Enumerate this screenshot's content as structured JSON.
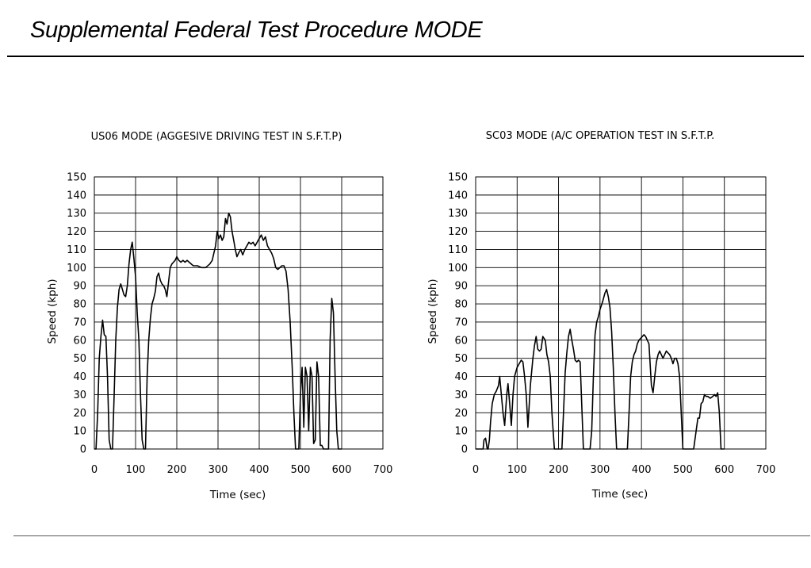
{
  "slide": {
    "title": "Supplemental Federal Test Procedure MODE"
  },
  "chart_data": [
    {
      "type": "line",
      "title": "US06 MODE (AGGESIVE DRIVING TEST IN S.F.T.P)",
      "xlabel": "Time (sec)",
      "ylabel": "Speed (kph)",
      "xlim": [
        0,
        700
      ],
      "ylim": [
        0,
        150
      ],
      "xticks": [
        0,
        100,
        200,
        300,
        400,
        500,
        600,
        700
      ],
      "yticks": [
        0,
        10,
        20,
        30,
        40,
        50,
        60,
        70,
        80,
        90,
        100,
        110,
        120,
        130,
        140,
        150
      ],
      "grid": true,
      "series": [
        {
          "x": [
            0,
            4,
            8,
            12,
            16,
            20,
            24,
            28,
            32,
            36,
            40,
            44,
            48,
            52,
            56,
            60,
            64,
            68,
            72,
            76,
            80,
            84,
            88,
            92,
            96,
            100,
            104,
            108,
            112,
            116,
            120,
            124,
            128,
            132,
            136,
            140,
            144,
            148,
            152,
            156,
            160,
            164,
            168,
            172,
            176,
            180,
            184,
            188,
            192,
            196,
            200,
            205,
            210,
            215,
            220,
            225,
            230,
            240,
            250,
            260,
            270,
            280,
            286,
            290,
            294,
            298,
            302,
            306,
            310,
            314,
            318,
            322,
            326,
            330,
            334,
            338,
            342,
            346,
            350,
            355,
            360,
            365,
            370,
            375,
            380,
            385,
            390,
            395,
            400,
            405,
            410,
            415,
            420,
            425,
            430,
            435,
            440,
            445,
            450,
            455,
            460,
            465,
            470,
            475,
            480,
            484,
            488,
            492,
            494,
            496,
            500,
            504,
            508,
            512,
            516,
            520,
            524,
            528,
            532,
            536,
            540,
            544,
            548,
            552,
            556,
            560,
            564,
            568,
            572,
            576,
            580,
            584,
            588,
            592,
            596,
            600
          ],
          "y": [
            0,
            0,
            20,
            50,
            62,
            71,
            63,
            62,
            40,
            5,
            0,
            0,
            30,
            60,
            78,
            88,
            91,
            88,
            85,
            84,
            90,
            102,
            110,
            114,
            105,
            95,
            75,
            60,
            30,
            5,
            0,
            0,
            40,
            60,
            72,
            80,
            83,
            87,
            95,
            97,
            93,
            91,
            90,
            88,
            84,
            92,
            100,
            102,
            103,
            104,
            106,
            104,
            103,
            104,
            103,
            104,
            103,
            101,
            101,
            100,
            100,
            102,
            104,
            108,
            112,
            120,
            116,
            118,
            115,
            117,
            127,
            124,
            130,
            128,
            120,
            115,
            110,
            106,
            108,
            110,
            107,
            110,
            112,
            114,
            113,
            114,
            112,
            114,
            116,
            118,
            115,
            117,
            112,
            110,
            108,
            105,
            100,
            99,
            100,
            101,
            101,
            98,
            88,
            70,
            45,
            20,
            0,
            0,
            0,
            0,
            30,
            45,
            12,
            45,
            40,
            10,
            45,
            40,
            3,
            5,
            48,
            40,
            2,
            2,
            0,
            0,
            0,
            0,
            60,
            83,
            75,
            40,
            10,
            0,
            0,
            0
          ]
        }
      ]
    },
    {
      "type": "line",
      "title": "SC03 MODE (A/C OPERATION TEST IN S.F.T.P.",
      "xlabel": "Time (sec)",
      "ylabel": "Speed (kph)",
      "xlim": [
        0,
        700
      ],
      "ylim": [
        0,
        150
      ],
      "xticks": [
        0,
        100,
        200,
        300,
        400,
        500,
        600,
        700
      ],
      "yticks": [
        0,
        10,
        20,
        30,
        40,
        50,
        60,
        70,
        80,
        90,
        100,
        110,
        120,
        130,
        140,
        150
      ],
      "grid": true,
      "series": [
        {
          "x": [
            0,
            10,
            14,
            18,
            20,
            24,
            28,
            30,
            33,
            36,
            40,
            45,
            50,
            55,
            58,
            62,
            66,
            70,
            75,
            78,
            82,
            86,
            90,
            94,
            100,
            105,
            110,
            114,
            118,
            122,
            126,
            132,
            138,
            142,
            146,
            150,
            154,
            158,
            162,
            168,
            172,
            176,
            180,
            184,
            190,
            200,
            208,
            212,
            216,
            220,
            224,
            228,
            232,
            236,
            240,
            244,
            248,
            252,
            260,
            266,
            270,
            276,
            280,
            284,
            288,
            292,
            296,
            300,
            306,
            312,
            316,
            320,
            324,
            328,
            332,
            336,
            340,
            344,
            350,
            360,
            366,
            370,
            374,
            378,
            382,
            386,
            390,
            394,
            398,
            402,
            406,
            410,
            414,
            418,
            424,
            428,
            432,
            436,
            440,
            444,
            448,
            452,
            456,
            460,
            464,
            468,
            472,
            476,
            480,
            484,
            488,
            492,
            496,
            500,
            504,
            508,
            512,
            516,
            520,
            526,
            536,
            540,
            544,
            548,
            552,
            556,
            560,
            566,
            572,
            576,
            580,
            584,
            588,
            592,
            596,
            600
          ],
          "y": [
            0,
            0,
            0,
            0,
            5,
            6,
            0,
            0,
            5,
            15,
            25,
            30,
            32,
            35,
            40,
            30,
            20,
            13,
            30,
            36,
            25,
            13,
            30,
            40,
            45,
            47,
            49,
            48,
            40,
            30,
            12,
            35,
            50,
            57,
            62,
            55,
            54,
            55,
            62,
            60,
            52,
            48,
            40,
            20,
            0,
            0,
            0,
            20,
            42,
            53,
            62,
            66,
            60,
            55,
            49,
            48,
            49,
            48,
            0,
            0,
            0,
            0,
            10,
            40,
            63,
            70,
            73,
            77,
            81,
            86,
            88,
            84,
            78,
            65,
            45,
            20,
            0,
            0,
            0,
            0,
            0,
            20,
            40,
            48,
            52,
            54,
            58,
            60,
            61,
            62,
            63,
            62,
            60,
            58,
            35,
            31,
            40,
            48,
            52,
            54,
            52,
            50,
            52,
            54,
            53,
            52,
            50,
            47,
            50,
            50,
            47,
            40,
            20,
            0,
            0,
            0,
            0,
            0,
            0,
            0,
            17,
            17,
            25,
            26,
            30,
            29,
            29,
            28,
            29,
            30,
            29,
            31,
            20,
            0,
            0,
            0
          ]
        }
      ]
    }
  ]
}
